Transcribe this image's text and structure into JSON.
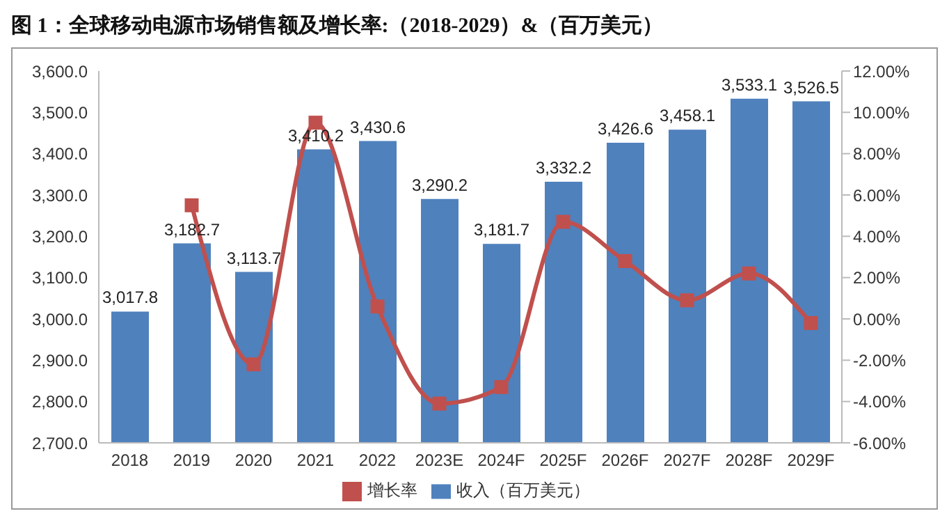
{
  "chart_data": {
    "type": "bar",
    "title": "图 1：全球移动电源市场销售额及增长率:（2018-2029）&（百万美元）",
    "categories": [
      "2018",
      "2019",
      "2020",
      "2021",
      "2022",
      "2023E",
      "2024F",
      "2025F",
      "2026F",
      "2027F",
      "2028F",
      "2029F"
    ],
    "series": [
      {
        "name": "收入（百万美元）",
        "color": "#4f81bd",
        "values": [
          3017.8,
          3182.7,
          3113.7,
          3410.2,
          3430.6,
          3290.2,
          3181.7,
          3332.2,
          3426.6,
          3458.1,
          3533.1,
          3526.5
        ],
        "value_labels": [
          "3,017.8",
          "3,182.7",
          "3,113.7",
          "3,410.2",
          "3,430.6",
          "3,290.2",
          "3,181.7",
          "3,332.2",
          "3,426.6",
          "3,458.1",
          "3,533.1",
          "3,526.5"
        ]
      },
      {
        "name": "增长率",
        "type": "line",
        "axis": "y2",
        "color": "#c0504d",
        "marker": "square",
        "values": [
          null,
          5.5,
          -2.2,
          9.5,
          0.6,
          -4.1,
          -3.3,
          4.7,
          2.8,
          0.9,
          2.2,
          -0.2
        ]
      }
    ],
    "ylim": [
      2700,
      3600
    ],
    "yticks": [
      {
        "value": 2700,
        "label": "2,700.0"
      },
      {
        "value": 2800,
        "label": "2,800.0"
      },
      {
        "value": 2900,
        "label": "2,900.0"
      },
      {
        "value": 3000,
        "label": "3,000.0"
      },
      {
        "value": 3100,
        "label": "3,100.0"
      },
      {
        "value": 3200,
        "label": "3,200.0"
      },
      {
        "value": 3300,
        "label": "3,300.0"
      },
      {
        "value": 3400,
        "label": "3,400.0"
      },
      {
        "value": 3500,
        "label": "3,500.0"
      },
      {
        "value": 3600,
        "label": "3,600.0"
      }
    ],
    "y2lim": [
      -6,
      12
    ],
    "y2ticks": [
      {
        "value": -6,
        "label": "-6.00%"
      },
      {
        "value": -4,
        "label": "-4.00%"
      },
      {
        "value": -2,
        "label": "-2.00%"
      },
      {
        "value": 0,
        "label": "0.00%"
      },
      {
        "value": 2,
        "label": "2.00%"
      },
      {
        "value": 4,
        "label": "4.00%"
      },
      {
        "value": 6,
        "label": "6.00%"
      },
      {
        "value": 8,
        "label": "8.00%"
      },
      {
        "value": 10,
        "label": "10.00%"
      },
      {
        "value": 12,
        "label": "12.00%"
      }
    ],
    "legend": "bottom",
    "grid": false
  }
}
